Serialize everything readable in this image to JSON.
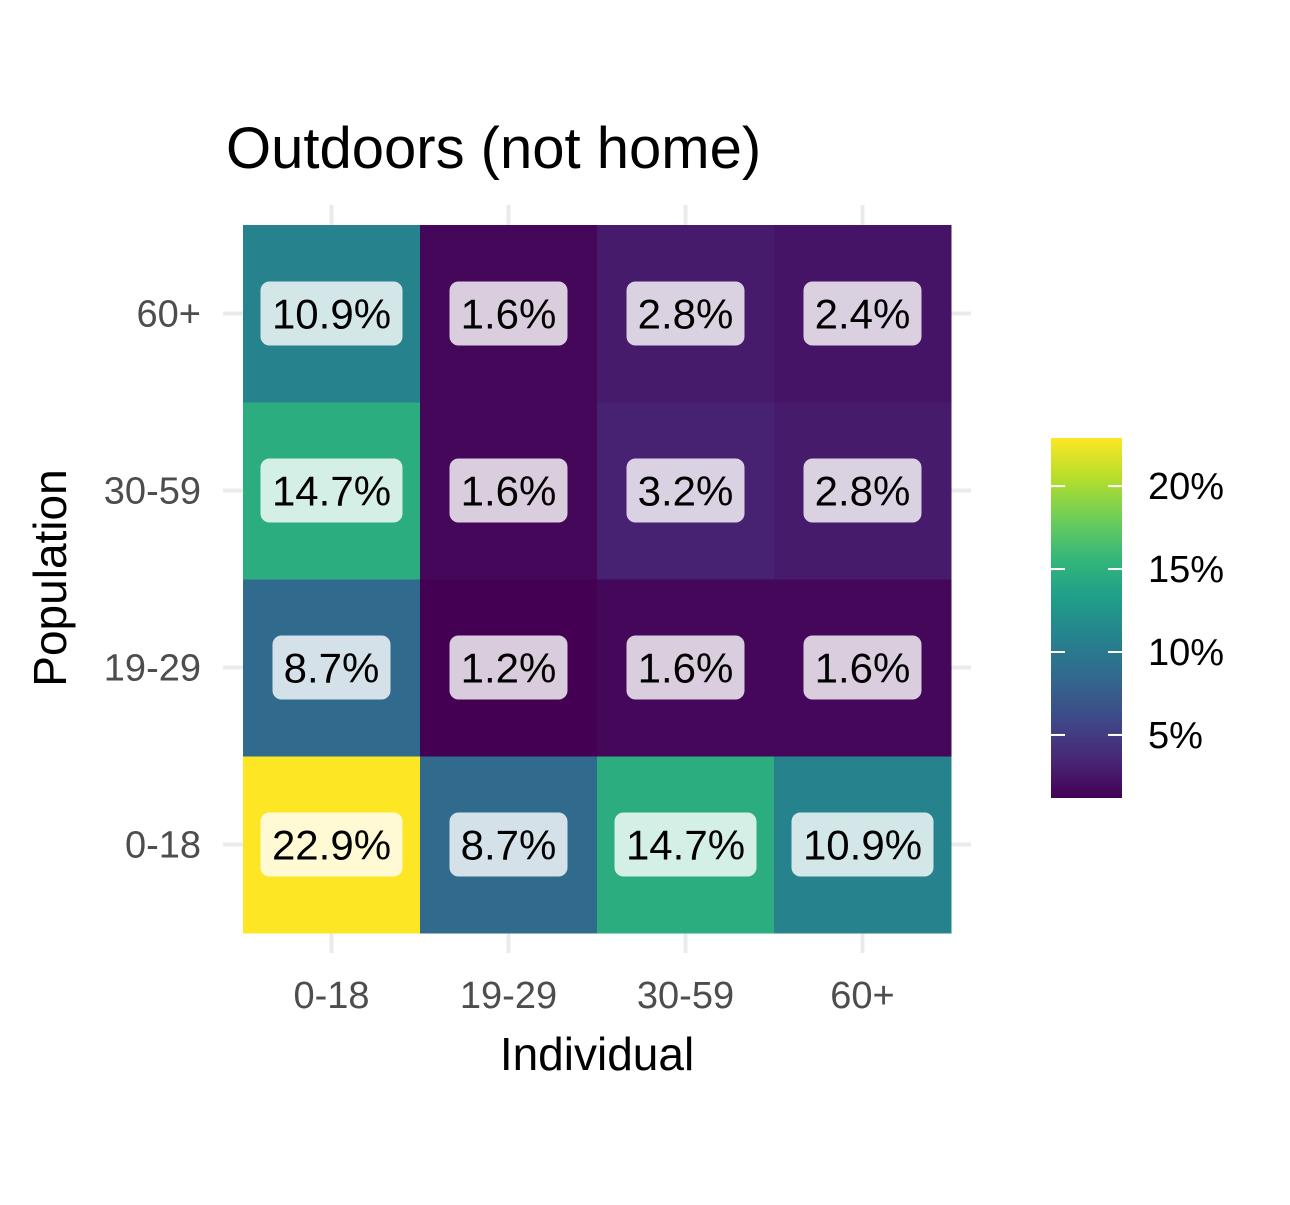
{
  "chart_data": {
    "type": "heatmap",
    "title": "Outdoors (not home)",
    "xlabel": "Individual",
    "ylabel": "Population",
    "x_categories": [
      "0-18",
      "19-29",
      "30-59",
      "60+"
    ],
    "y_categories": [
      "0-18",
      "19-29",
      "30-59",
      "60+"
    ],
    "values": [
      [
        22.9,
        8.7,
        14.7,
        10.9
      ],
      [
        8.7,
        1.2,
        1.6,
        1.6
      ],
      [
        14.7,
        1.6,
        3.2,
        2.8
      ],
      [
        10.9,
        1.6,
        2.8,
        2.4
      ]
    ],
    "value_labels": [
      [
        "22.9%",
        "8.7%",
        "14.7%",
        "10.9%"
      ],
      [
        "8.7%",
        "1.2%",
        "1.6%",
        "1.6%"
      ],
      [
        "14.7%",
        "1.6%",
        "3.2%",
        "2.8%"
      ],
      [
        "10.9%",
        "1.6%",
        "2.8%",
        "2.4%"
      ]
    ],
    "color_scale": {
      "palette": "viridis",
      "range": [
        1.2,
        22.9
      ],
      "ticks": [
        5,
        10,
        15,
        20
      ],
      "tick_labels": [
        "5%",
        "10%",
        "15%",
        "20%"
      ],
      "stops": [
        "#440154",
        "#482878",
        "#3e4a89",
        "#31688e",
        "#26828e",
        "#1f9e89",
        "#35b779",
        "#6ece58",
        "#b5de2b",
        "#fde725"
      ]
    },
    "legend_position": "right",
    "grid": true
  }
}
